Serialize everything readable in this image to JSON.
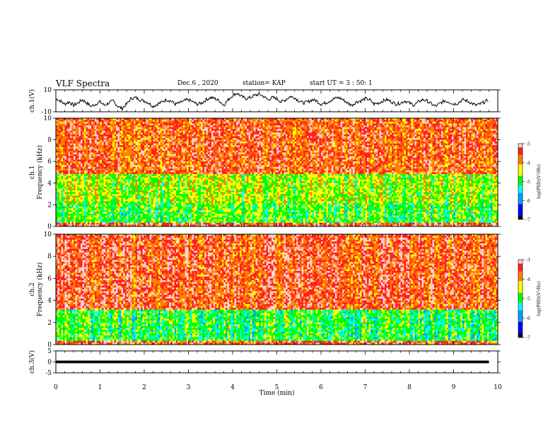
{
  "header": {
    "title": "VLF Spectra",
    "date": "Dec.6 , 2020",
    "station": "station= KAP",
    "start": "start UT = 3 : 50: 1"
  },
  "colors": {
    "trace": "#000000",
    "colormap": [
      "#000000",
      "#0000ff",
      "#00a0ff",
      "#00ffff",
      "#00ff00",
      "#ffff00",
      "#ff8000",
      "#ff2020",
      "#ffffff"
    ]
  },
  "chart_data": [
    {
      "type": "line",
      "panel": "ch1-waveform",
      "ylabel": "ch.1(V)",
      "ylim": [
        -10,
        10
      ],
      "yticks": [
        10,
        -10
      ],
      "xlim": [
        0,
        10
      ],
      "grid": false,
      "series": [
        {
          "x": [
            0,
            0.1,
            0.2,
            0.3,
            0.4,
            0.5,
            0.6,
            0.7,
            0.8,
            0.9,
            1.0,
            1.1,
            1.2,
            1.3,
            1.4,
            1.5,
            1.6,
            1.7,
            1.8,
            1.9,
            2.0,
            2.1,
            2.2,
            2.3,
            2.4,
            2.5,
            2.6,
            2.7,
            2.8,
            2.9,
            3.0,
            3.1,
            3.2,
            3.3,
            3.4,
            3.5,
            3.6,
            3.7,
            3.8,
            3.9,
            4.0,
            4.1,
            4.2,
            4.3,
            4.4,
            4.5,
            4.6,
            4.7,
            4.8,
            4.9,
            5.0,
            5.1,
            5.2,
            5.3,
            5.4,
            5.5,
            5.6,
            5.7,
            5.8,
            5.9,
            6.0,
            6.1,
            6.2,
            6.3,
            6.4,
            6.5,
            6.6,
            6.7,
            6.8,
            6.9,
            7.0,
            7.1,
            7.2,
            7.3,
            7.4,
            7.5,
            7.6,
            7.7,
            7.8,
            7.9,
            8.0,
            8.1,
            8.2,
            8.3,
            8.4,
            8.5,
            8.6,
            8.7,
            8.8,
            8.9,
            9.0,
            9.1,
            9.2,
            9.3,
            9.4,
            9.5,
            9.6,
            9.7,
            9.8
          ],
          "y": [
            2,
            0,
            -3,
            -1,
            -4,
            -2,
            1,
            -2,
            -5,
            -3,
            -1,
            -4,
            -2,
            0,
            -5,
            -7,
            -3,
            2,
            3,
            1,
            0,
            -2,
            -5,
            -3,
            -1,
            1,
            0,
            -3,
            -2,
            0,
            1,
            -1,
            -3,
            -2,
            1,
            3,
            2,
            0,
            -4,
            1,
            5,
            7,
            4,
            2,
            3,
            5,
            6,
            4,
            1,
            3,
            2,
            -1,
            1,
            4,
            3,
            0,
            -2,
            -1,
            1,
            0,
            -3,
            -2,
            0,
            2,
            3,
            1,
            -2,
            -4,
            -1,
            0,
            2,
            1,
            -3,
            -2,
            0,
            1,
            -1,
            -3,
            -2,
            0,
            -2,
            -4,
            -1,
            1,
            0,
            -3,
            -5,
            -2,
            0,
            -1,
            -3,
            -2,
            1,
            0,
            -2,
            -4,
            -3,
            -1,
            1
          ]
        }
      ]
    },
    {
      "type": "heatmap",
      "panel": "ch1-spectrogram",
      "ylabel": "ch.1 Frequency (kHz)",
      "ylim": [
        0,
        10
      ],
      "yticks": [
        0,
        2,
        4,
        6,
        8,
        10
      ],
      "xlim": [
        0,
        10
      ],
      "colorbar": {
        "label": "log(PSD)(V²/Hz)",
        "range": [
          -7,
          -3
        ],
        "ticks": [
          -3,
          -4,
          -5,
          -6,
          -7
        ]
      },
      "band_structure_log_psd": [
        {
          "f_range": [
            0,
            0.4
          ],
          "level": -3.4
        },
        {
          "f_range": [
            0.4,
            2.2
          ],
          "level": -4.9
        },
        {
          "f_range": [
            2.2,
            4.9
          ],
          "level": -4.6
        },
        {
          "f_range": [
            4.9,
            10
          ],
          "level": -3.6
        }
      ]
    },
    {
      "type": "heatmap",
      "panel": "ch2-spectrogram",
      "ylabel": "ch.2 Frequency (kHz)",
      "ylim": [
        0,
        10
      ],
      "yticks": [
        0,
        2,
        4,
        6,
        8,
        10
      ],
      "xlim": [
        0,
        10
      ],
      "colorbar": {
        "label": "log(PSD)(V²/Hz)",
        "range": [
          -7,
          -3
        ],
        "ticks": [
          -3,
          -4,
          -5,
          -6,
          -7
        ]
      },
      "band_structure_log_psd": [
        {
          "f_range": [
            0,
            0.3
          ],
          "level": -3.5
        },
        {
          "f_range": [
            0.3,
            3.2
          ],
          "level": -5.0
        },
        {
          "f_range": [
            3.2,
            10
          ],
          "level": -3.5
        }
      ]
    },
    {
      "type": "line",
      "panel": "ch3-waveform",
      "ylabel": "ch.3(V)",
      "ylim": [
        -5,
        5
      ],
      "yticks": [
        5,
        0,
        -5
      ],
      "xlim": [
        0,
        10
      ],
      "xlabel": "Time (min)",
      "xticks": [
        0,
        1,
        2,
        3,
        4,
        5,
        6,
        7,
        8,
        9,
        10
      ],
      "series": [
        {
          "x": [
            0,
            9.8
          ],
          "y": [
            0,
            0
          ],
          "band_width_v": 1.2
        }
      ]
    }
  ]
}
